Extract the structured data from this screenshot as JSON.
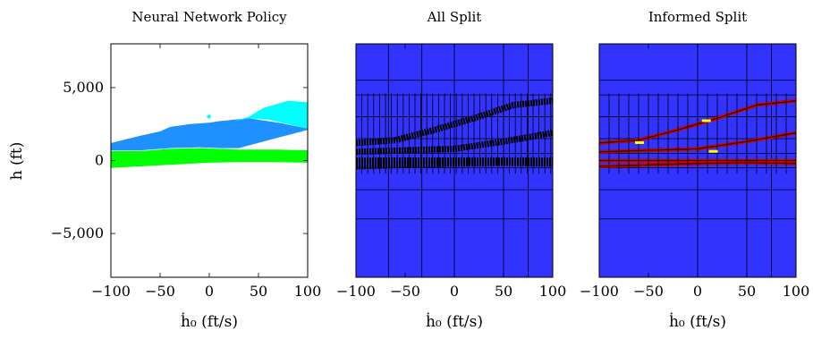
{
  "chart_data": [
    {
      "type": "area",
      "title": "Neural Network Policy",
      "xlabel": "ḣ₀ (ft/s)",
      "ylabel": "h (ft)",
      "xlim": [
        -100,
        100
      ],
      "ylim": [
        -8000,
        8000
      ],
      "xticks": [
        "−100",
        "−50",
        "0",
        "50",
        "100"
      ],
      "yticks": [
        "5,000",
        "0",
        "−5,000"
      ],
      "xtick_values": [
        -100,
        -50,
        0,
        50,
        100
      ],
      "ytick_values": [
        5000,
        0,
        -5000
      ],
      "background_color": "#ffffff",
      "regions": [
        {
          "color": "#00ff00",
          "points": [
            [
              -100,
              -500
            ],
            [
              -70,
              -400
            ],
            [
              -30,
              -250
            ],
            [
              0,
              -150
            ],
            [
              30,
              -100
            ],
            [
              60,
              -100
            ],
            [
              100,
              -150
            ],
            [
              100,
              700
            ],
            [
              70,
              750
            ],
            [
              50,
              750
            ],
            [
              30,
              750
            ],
            [
              10,
              800
            ],
            [
              -10,
              850
            ],
            [
              -40,
              800
            ],
            [
              -70,
              650
            ],
            [
              -100,
              650
            ]
          ]
        },
        {
          "color": "#1e90ff",
          "points": [
            [
              -100,
              700
            ],
            [
              -70,
              700
            ],
            [
              -40,
              850
            ],
            [
              -10,
              900
            ],
            [
              10,
              850
            ],
            [
              30,
              850
            ],
            [
              60,
              1400
            ],
            [
              100,
              2100
            ],
            [
              100,
              2200
            ],
            [
              70,
              2600
            ],
            [
              40,
              2900
            ],
            [
              25,
              2800
            ],
            [
              10,
              2700
            ],
            [
              0,
              2600
            ],
            [
              -20,
              2500
            ],
            [
              -40,
              2300
            ],
            [
              -50,
              2000
            ],
            [
              -70,
              1700
            ],
            [
              -100,
              1200
            ]
          ]
        },
        {
          "color": "#00ffff",
          "points": [
            [
              20,
              2600
            ],
            [
              40,
              3000
            ],
            [
              55,
              3600
            ],
            [
              80,
              4100
            ],
            [
              100,
              4000
            ],
            [
              100,
              2200
            ],
            [
              80,
              2500
            ],
            [
              60,
              2800
            ],
            [
              40,
              2900
            ],
            [
              25,
              2700
            ]
          ]
        },
        {
          "color": "#00ffff",
          "points": [
            [
              -3,
              3000
            ],
            [
              0,
              3200
            ],
            [
              2,
              3000
            ],
            [
              0,
              2850
            ]
          ]
        }
      ]
    },
    {
      "type": "heatmap",
      "title": "All Split",
      "xlabel": "ḣ₀ (ft/s)",
      "xlim": [
        -100,
        100
      ],
      "ylim": [
        -8000,
        8000
      ],
      "xticks": [
        "−100",
        "−50",
        "0",
        "50",
        "100"
      ],
      "xtick_values": [
        -100,
        -50,
        0,
        50,
        100
      ],
      "background_color": "#3333ff",
      "grid_on": true,
      "dense_band_color": "#000000"
    },
    {
      "type": "heatmap",
      "title": "Informed Split",
      "xlabel": "ḣ₀ (ft/s)",
      "xlim": [
        -100,
        100
      ],
      "ylim": [
        -8000,
        8000
      ],
      "xticks": [
        "−100",
        "−50",
        "0",
        "50",
        "100"
      ],
      "xtick_values": [
        -100,
        -50,
        0,
        50,
        100
      ],
      "background_color": "#3333ff",
      "grid_on": true,
      "dense_band_color": "#cc0000",
      "highlight_color": "#ffff00"
    }
  ]
}
